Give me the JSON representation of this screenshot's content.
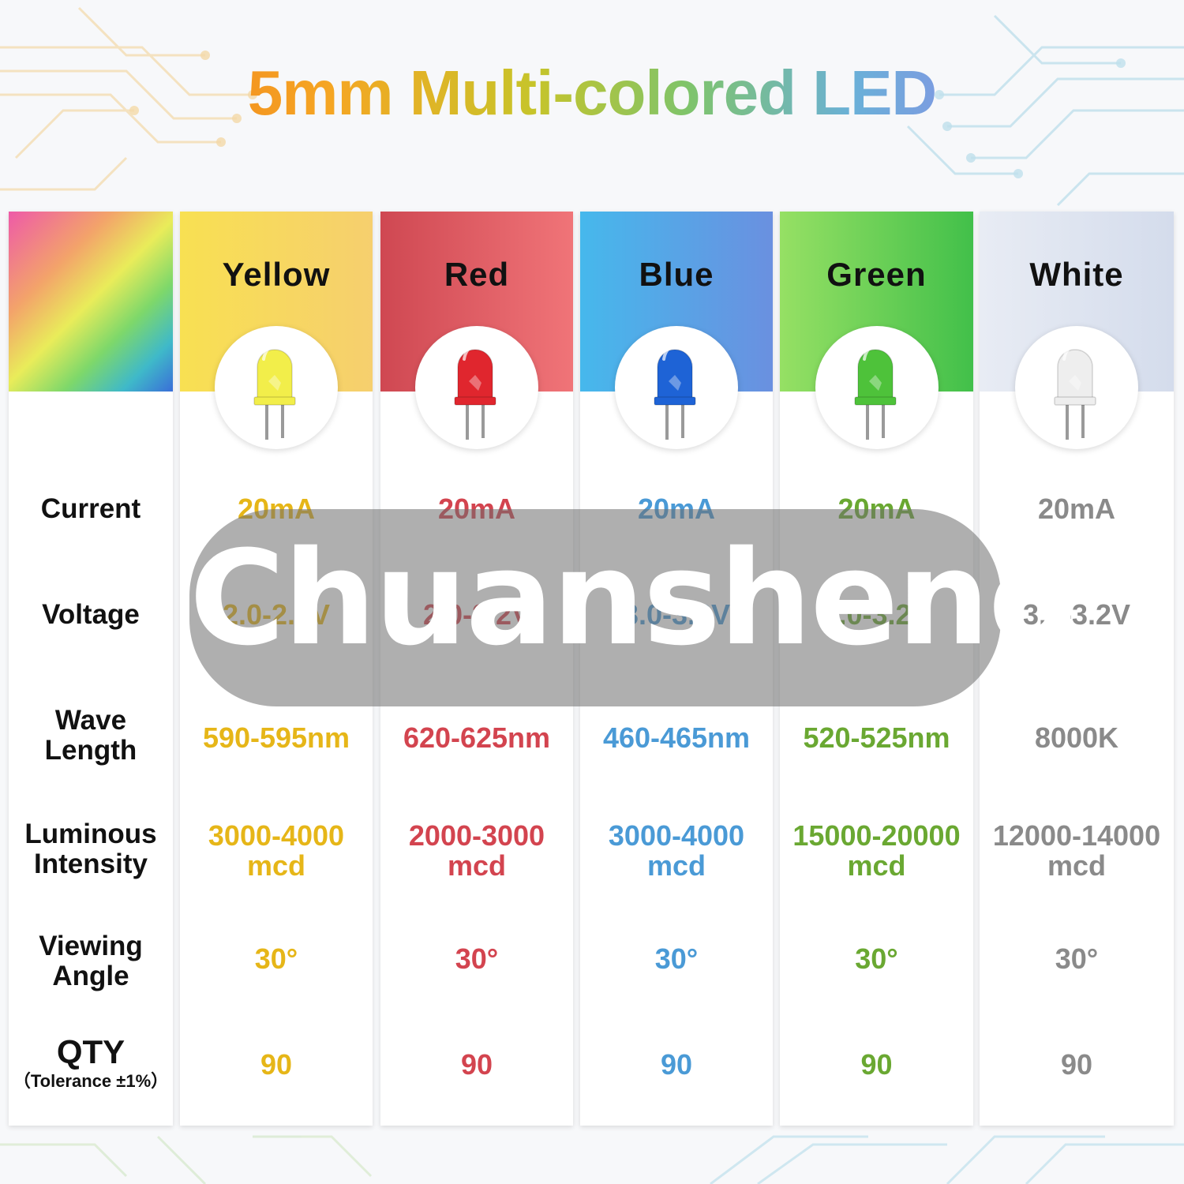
{
  "title": "5mm Multi-colored LED",
  "watermark": "Chuansheng",
  "row_labels": [
    {
      "line1": "Current"
    },
    {
      "line1": "Voltage"
    },
    {
      "line1": "Wave",
      "line2": "Length"
    },
    {
      "line1": "Luminous",
      "line2": "Intensity"
    },
    {
      "line1": "Viewing",
      "line2": "Angle"
    },
    {
      "line1": "QTY",
      "sub": "（Tolerance ±1%）"
    }
  ],
  "columns": [
    {
      "name": "Yellow",
      "color": "#e6b618",
      "led_color": "#f2ee4a",
      "head_gradient": "linear-gradient(90deg,#f8e052,#f6cf6e)",
      "current": "20mA",
      "voltage": "2.0-2.2V",
      "wavelength": "590-595nm",
      "intensity": "3000-4000",
      "intensity_unit": "mcd",
      "angle": "30°",
      "qty": "90"
    },
    {
      "name": "Red",
      "color": "#d3444f",
      "led_color": "#e0262e",
      "head_gradient": "linear-gradient(90deg,#cf4852,#f07478)",
      "current": "20mA",
      "voltage": "2.0-2.2V",
      "wavelength": "620-625nm",
      "intensity": "2000-3000",
      "intensity_unit": "mcd",
      "angle": "30°",
      "qty": "90"
    },
    {
      "name": "Blue",
      "color": "#4a9ad6",
      "led_color": "#1e63d6",
      "head_gradient": "linear-gradient(90deg,#46b8ec,#6a90e0)",
      "current": "20mA",
      "voltage": "3.0-3.2V",
      "wavelength": "460-465nm",
      "intensity": "3000-4000",
      "intensity_unit": "mcd",
      "angle": "30°",
      "qty": "90"
    },
    {
      "name": "Green",
      "color": "#6aa832",
      "led_color": "#4ec23a",
      "head_gradient": "linear-gradient(90deg,#96e064,#42c04a)",
      "current": "20mA",
      "voltage": "3.0-3.2V",
      "wavelength": "520-525nm",
      "intensity": "15000-20000",
      "intensity_unit": "mcd",
      "angle": "30°",
      "qty": "90"
    },
    {
      "name": "White",
      "color": "#8a8a8a",
      "led_color": "#eeeeee",
      "head_gradient": "linear-gradient(90deg,#e8ecf4,#d4dcec)",
      "current": "20mA",
      "voltage": "3.0-3.2V",
      "wavelength": "8000K",
      "intensity": "12000-14000",
      "intensity_unit": "mcd",
      "angle": "30°",
      "qty": "90"
    }
  ]
}
